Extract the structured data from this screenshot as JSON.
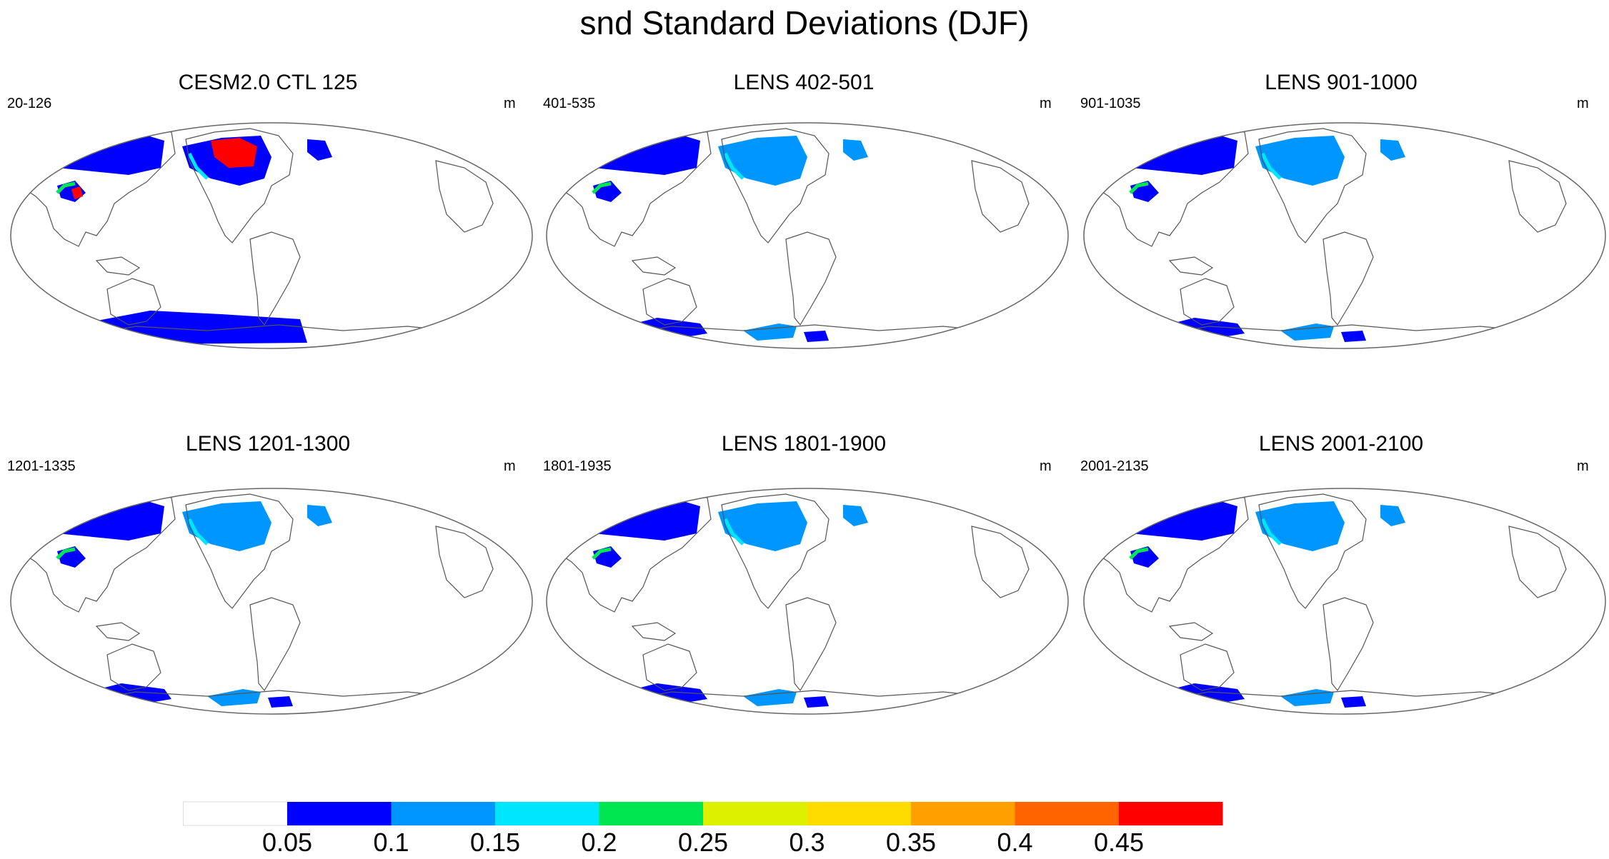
{
  "figure": {
    "title": "snd Standard Deviations (DJF)"
  },
  "panels": [
    {
      "title": "CESM2.0 CTL 125",
      "range_label": "20-126",
      "unit": "m",
      "intensity": "high"
    },
    {
      "title": "LENS 402-501",
      "range_label": "401-535",
      "unit": "m",
      "intensity": "normal"
    },
    {
      "title": "LENS 901-1000",
      "range_label": "901-1035",
      "unit": "m",
      "intensity": "normal"
    },
    {
      "title": "LENS 1201-1300",
      "range_label": "1201-1335",
      "unit": "m",
      "intensity": "normal"
    },
    {
      "title": "LENS 1801-1900",
      "range_label": "1801-1935",
      "unit": "m",
      "intensity": "normal"
    },
    {
      "title": "LENS 2001-2100",
      "range_label": "2001-2135",
      "unit": "m",
      "intensity": "normal"
    }
  ],
  "colorbar": {
    "colors": [
      "#ffffff",
      "#0000ff",
      "#0096ff",
      "#00e6ff",
      "#00e650",
      "#dcf000",
      "#ffdc00",
      "#ffa000",
      "#ff6400",
      "#ff0000"
    ],
    "labels": [
      "0.05",
      "0.1",
      "0.15",
      "0.2",
      "0.25",
      "0.3",
      "0.35",
      "0.4",
      "0.45"
    ]
  }
}
